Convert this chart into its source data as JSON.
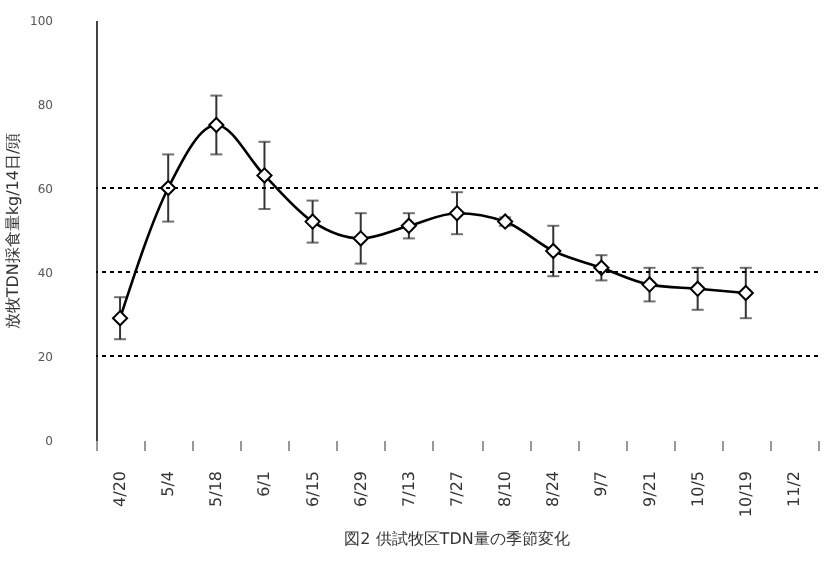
{
  "chart_data": {
    "type": "line",
    "ylabel": "放牧TDN採食量kg/14日/頭",
    "annotations": [
      "図2  供試牧区TDN量の季節変化"
    ],
    "categories": [
      "4/20",
      "5/4",
      "5/18",
      "6/1",
      "6/15",
      "6/29",
      "7/13",
      "7/27",
      "8/10",
      "8/24",
      "9/7",
      "9/21",
      "10/5",
      "10/19",
      "11/2"
    ],
    "series": [
      {
        "color": "#000000",
        "values": [
          29,
          60,
          75,
          63,
          52,
          48,
          51,
          54,
          52,
          45,
          41,
          37,
          36,
          35,
          null
        ],
        "errors": [
          5,
          8,
          7,
          8,
          5,
          6,
          3,
          5,
          1,
          6,
          3,
          4,
          5,
          6,
          null
        ]
      }
    ],
    "ylim": [
      0,
      100
    ],
    "yticks": [
      0,
      20,
      40,
      60,
      80,
      100
    ],
    "marker": "diamond",
    "ref_lines": [
      {
        "axis": "y",
        "value": 20,
        "line_style": "dotted"
      },
      {
        "axis": "y",
        "value": 40,
        "line_style": "dotted"
      },
      {
        "axis": "y",
        "value": 60,
        "line_style": "dotted"
      }
    ]
  }
}
